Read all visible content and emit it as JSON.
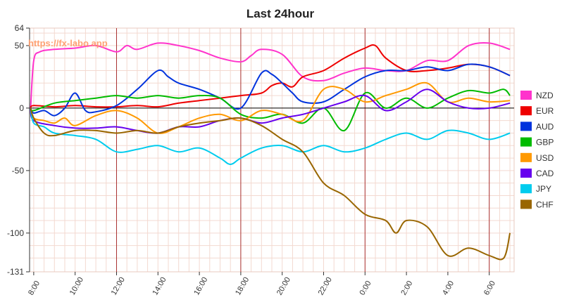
{
  "chart_data": {
    "type": "line",
    "title": "Last 24hour",
    "watermark": "https://fx-labo.app",
    "xlabel": "",
    "ylabel": "",
    "ylim": [
      -131,
      64
    ],
    "y_ticks": [
      64,
      50,
      0,
      -50,
      -100,
      -131
    ],
    "x_ticks": [
      "8:00",
      "10:00",
      "12:00",
      "14:00",
      "16:00",
      "18:00",
      "20:00",
      "22:00",
      "0:00",
      "2:00",
      "4:00",
      "6:00"
    ],
    "x_tick_positions": [
      0,
      2,
      4,
      6,
      8,
      10,
      12,
      14,
      16,
      18,
      20,
      22
    ],
    "xlim": [
      -0.2,
      23.2
    ],
    "vertical_markers": [
      4,
      10,
      16,
      22
    ],
    "zero_line": true,
    "grid": true,
    "legend_position": "right",
    "series": [
      {
        "name": "NZD",
        "color": "#ff33cc",
        "x": [
          -0.15,
          0,
          0.3,
          1,
          2,
          3,
          4,
          4.5,
          5,
          6,
          7,
          8,
          9,
          10,
          10.5,
          11,
          12,
          13,
          14,
          15,
          16,
          17,
          18,
          19,
          20,
          21,
          22,
          23
        ],
        "y": [
          0,
          38,
          45,
          47,
          48,
          50,
          45,
          50,
          47,
          52,
          50,
          46,
          40,
          37,
          42,
          47,
          43,
          25,
          22,
          28,
          32,
          30,
          30,
          38,
          38,
          50,
          52,
          47
        ]
      },
      {
        "name": "EUR",
        "color": "#ee0000",
        "x": [
          -0.15,
          0,
          1,
          2,
          3,
          4,
          5,
          6,
          7,
          8,
          9,
          10,
          11,
          11.5,
          12,
          12.5,
          13,
          14,
          15,
          16,
          16.5,
          17,
          18,
          19,
          20,
          21,
          22,
          23
        ],
        "y": [
          0,
          2,
          1,
          2,
          1,
          1,
          2,
          1,
          4,
          6,
          8,
          10,
          12,
          18,
          20,
          17,
          25,
          30,
          40,
          48,
          50,
          40,
          30,
          30,
          32,
          35,
          33,
          26
        ]
      },
      {
        "name": "AUD",
        "color": "#0033dd",
        "x": [
          -0.15,
          0,
          0.5,
          1,
          1.5,
          2,
          2.5,
          3,
          4,
          5,
          6,
          6.5,
          7,
          8,
          9,
          10,
          11,
          11.5,
          12,
          12.5,
          13,
          14,
          15,
          16,
          17,
          18,
          19,
          20,
          21,
          22,
          23
        ],
        "y": [
          0,
          -4,
          -2,
          -6,
          0,
          12,
          -2,
          -3,
          2,
          15,
          30,
          25,
          20,
          15,
          8,
          0,
          28,
          27,
          20,
          12,
          5,
          5,
          15,
          25,
          30,
          30,
          33,
          30,
          35,
          33,
          26
        ]
      },
      {
        "name": "GBP",
        "color": "#00bb00",
        "x": [
          -0.15,
          0,
          1,
          2,
          3,
          4,
          5,
          6,
          7,
          8,
          9,
          10,
          11,
          12,
          13,
          14,
          15,
          16,
          17,
          18,
          19,
          20,
          21,
          22,
          22.7,
          23
        ],
        "y": [
          0,
          -2,
          4,
          6,
          8,
          10,
          8,
          10,
          8,
          10,
          8,
          -5,
          -8,
          -5,
          -12,
          0,
          -18,
          12,
          0,
          8,
          0,
          8,
          14,
          12,
          15,
          10
        ]
      },
      {
        "name": "USD",
        "color": "#ff9900",
        "x": [
          -0.15,
          0,
          0.5,
          1,
          1.5,
          2,
          3,
          4,
          5,
          6,
          7,
          8,
          9,
          10,
          11,
          12,
          13,
          14,
          15,
          16,
          17,
          18,
          19,
          20,
          21,
          22,
          23
        ],
        "y": [
          0,
          -8,
          -10,
          -12,
          -8,
          -14,
          -6,
          -2,
          -8,
          -20,
          -15,
          -8,
          -5,
          -10,
          -2,
          -5,
          -10,
          15,
          15,
          5,
          10,
          15,
          20,
          5,
          8,
          5,
          6
        ]
      },
      {
        "name": "CAD",
        "color": "#6600ee",
        "x": [
          -0.15,
          0,
          1,
          2,
          3,
          4,
          5,
          6,
          7,
          8,
          9,
          10,
          11,
          12,
          13,
          14,
          15,
          16,
          17,
          18,
          19,
          20,
          21,
          22,
          23
        ],
        "y": [
          0,
          -10,
          -14,
          -16,
          -16,
          -15,
          -18,
          -20,
          -15,
          -15,
          -10,
          -8,
          -12,
          -8,
          -5,
          0,
          5,
          10,
          -2,
          5,
          15,
          5,
          0,
          0,
          4
        ]
      },
      {
        "name": "JPY",
        "color": "#00ccee",
        "x": [
          -0.15,
          0,
          0.5,
          1,
          2,
          3,
          4,
          5,
          6,
          7,
          8,
          9,
          9.5,
          10,
          11,
          12,
          13,
          14,
          15,
          16,
          17,
          18,
          19,
          20,
          21,
          22,
          23
        ],
        "y": [
          0,
          -12,
          -15,
          -20,
          -22,
          -25,
          -35,
          -33,
          -30,
          -35,
          -32,
          -40,
          -45,
          -40,
          -32,
          -30,
          -35,
          -30,
          -35,
          -32,
          -25,
          -20,
          -25,
          -18,
          -20,
          -25,
          -20
        ]
      },
      {
        "name": "CHF",
        "color": "#996600",
        "x": [
          -0.15,
          0,
          0.5,
          1,
          2,
          3,
          4,
          5,
          6,
          7,
          8,
          9,
          10,
          11,
          12,
          13,
          14,
          15,
          16,
          17,
          17.5,
          18,
          19,
          20,
          21,
          22,
          22.7,
          23
        ],
        "y": [
          0,
          -8,
          -20,
          -22,
          -18,
          -18,
          -20,
          -18,
          -20,
          -15,
          -12,
          -10,
          -8,
          -14,
          -25,
          -35,
          -60,
          -70,
          -85,
          -90,
          -100,
          -90,
          -95,
          -118,
          -112,
          -118,
          -120,
          -100
        ]
      }
    ]
  }
}
